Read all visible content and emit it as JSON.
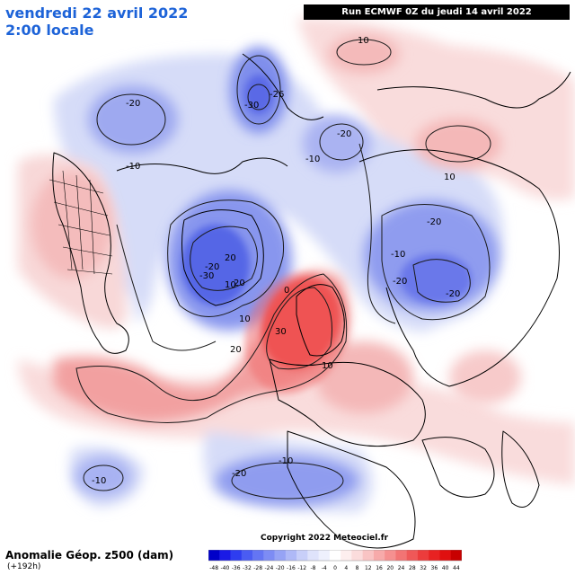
{
  "header": {
    "date": "vendredi 22 avril 2022",
    "time": "2:00 locale",
    "run": "Run ECMWF 0Z du jeudi 14 avril 2022"
  },
  "footer": {
    "title": "Anomalie Géop. z500 (dam)",
    "subtitle": "(+192h)",
    "copyright": "Copyright 2022 Meteociel.fr"
  },
  "legend": {
    "ticks": [
      "-48",
      "-40",
      "-36",
      "-32",
      "-28",
      "-24",
      "-20",
      "-16",
      "-12",
      "-8",
      "-4",
      "0",
      "4",
      "8",
      "12",
      "16",
      "20",
      "24",
      "28",
      "32",
      "36",
      "40",
      "44"
    ]
  },
  "contour_labels": [
    "10",
    "-26",
    "-30",
    "-20",
    "-20",
    "-10",
    "20",
    "-10",
    "-20",
    "10",
    "-10",
    "-30",
    "20",
    "-20",
    "10",
    "-20",
    "0",
    "10",
    "20",
    "30",
    "10",
    "-20",
    "-10",
    "-10",
    "-20"
  ],
  "colors": {
    "accent": "#1d63d8",
    "strong_neg": "#3e4fe0",
    "neg": "#8f9ef0",
    "weak_neg": "#cdd4f8",
    "weak_pos": "#f8d4d4",
    "pos": "#f29e9e",
    "strong_pos": "#ee4848"
  }
}
